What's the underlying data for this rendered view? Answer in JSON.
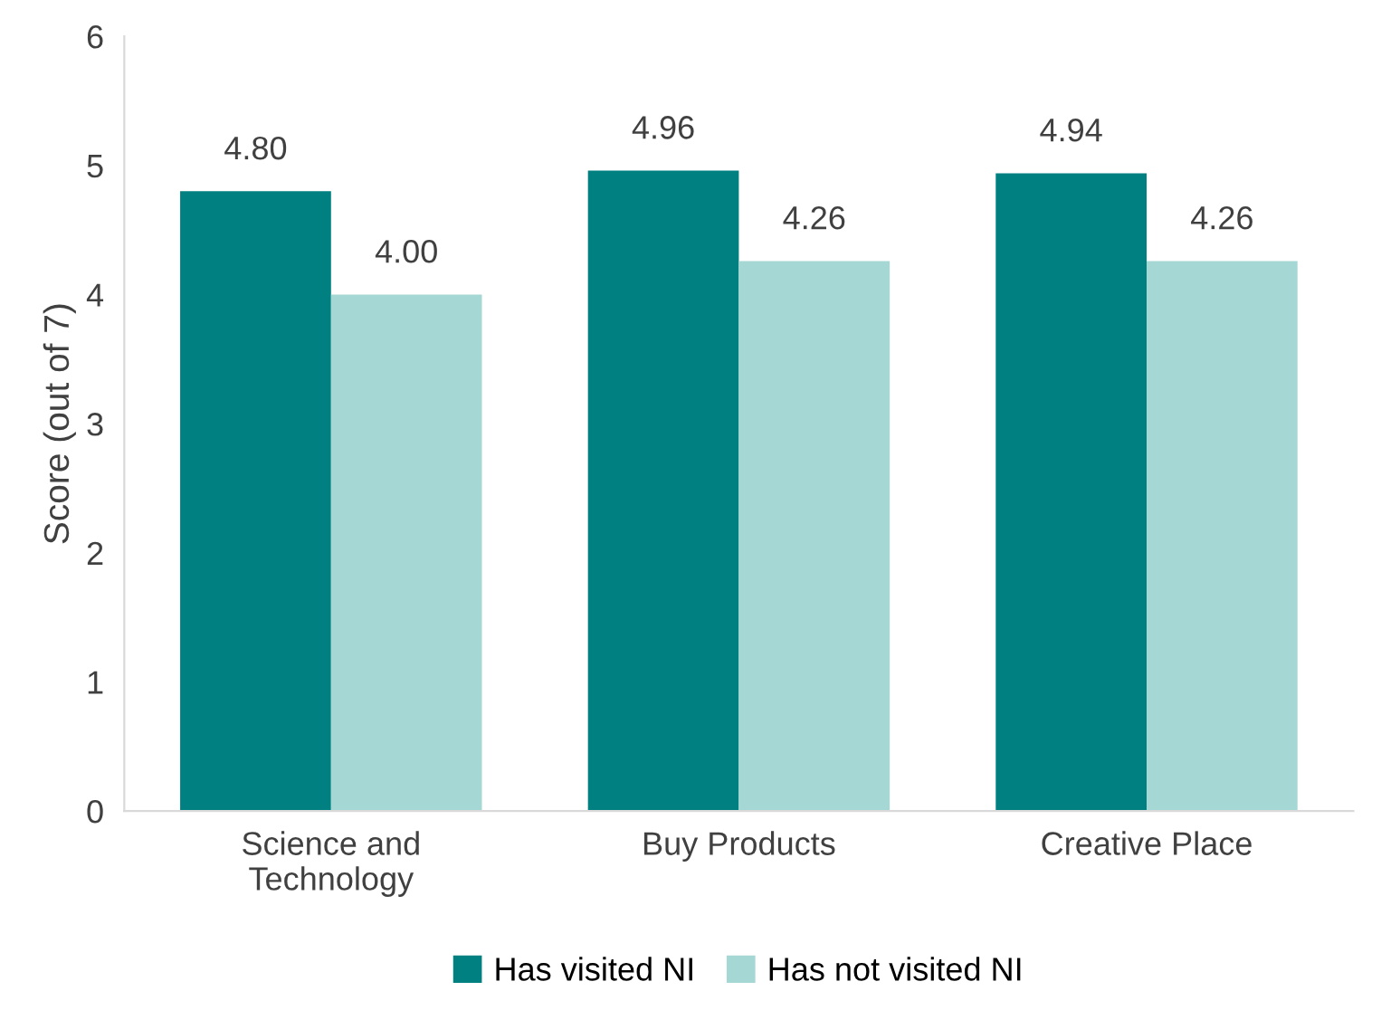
{
  "chart_data": {
    "type": "bar",
    "ylabel": "Score (out of 7)",
    "categories": [
      "Science and\nTechnology",
      "Buy Products",
      "Creative Place"
    ],
    "series": [
      {
        "name": "Has visited NI",
        "color": "#008080",
        "values": [
          4.8,
          4.96,
          4.94
        ],
        "value_labels": [
          "4.80",
          "4.96",
          "4.94"
        ]
      },
      {
        "name": "Has not visited NI",
        "color": "#a5d8d4",
        "values": [
          4.0,
          4.26,
          4.26
        ],
        "value_labels": [
          "4.00",
          "4.26",
          "4.26"
        ]
      }
    ],
    "ylim": [
      0,
      6
    ],
    "yticks": [
      0,
      1,
      2,
      3,
      4,
      5,
      6
    ],
    "grid": false,
    "legend": "bottom"
  }
}
